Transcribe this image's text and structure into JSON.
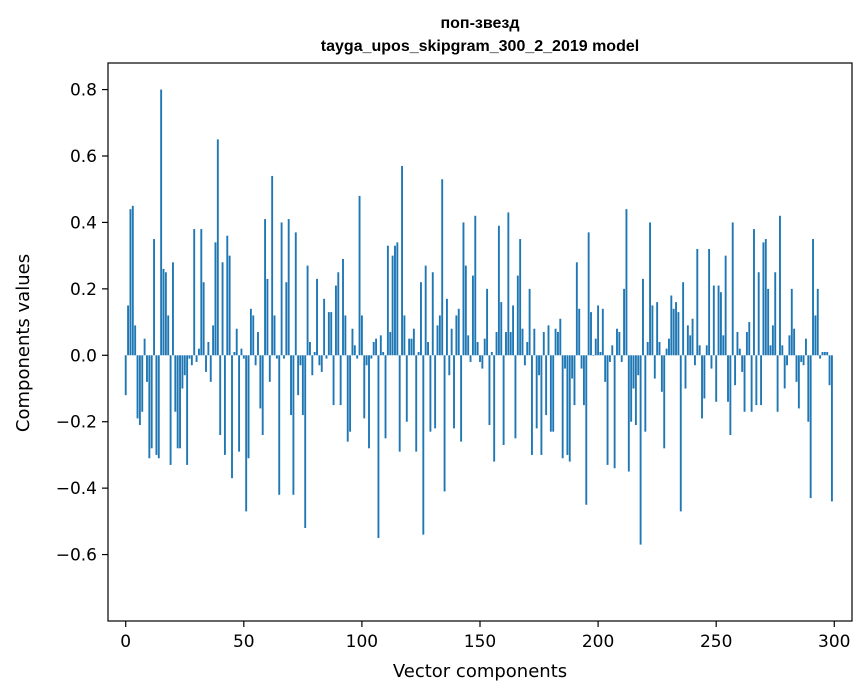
{
  "chart_data": {
    "type": "bar",
    "title_line1": "поп-звезд",
    "title_line2": "tayga_upos_skipgram_300_2_2019 model",
    "xlabel": "Vector components",
    "ylabel": "Components values",
    "xlim": [
      -7.5,
      307.5
    ],
    "ylim": [
      -0.8,
      0.88
    ],
    "x_ticks": [
      0,
      50,
      100,
      150,
      200,
      250,
      300
    ],
    "x_tick_labels": [
      "0",
      "50",
      "100",
      "150",
      "200",
      "250",
      "300"
    ],
    "y_ticks": [
      -0.6,
      -0.4,
      -0.2,
      0.0,
      0.2,
      0.4,
      0.6,
      0.8
    ],
    "y_tick_labels": [
      "−0.6",
      "−0.4",
      "−0.2",
      "0.0",
      "0.2",
      "0.4",
      "0.6",
      "0.8"
    ],
    "bar_color": "#1f77b4",
    "values": [
      -0.12,
      0.15,
      0.44,
      0.45,
      0.09,
      -0.19,
      -0.21,
      -0.17,
      0.05,
      -0.08,
      -0.31,
      -0.28,
      0.35,
      -0.3,
      -0.31,
      0.8,
      0.26,
      0.25,
      0.12,
      -0.33,
      0.28,
      -0.17,
      -0.28,
      -0.28,
      -0.1,
      -0.06,
      -0.33,
      -0.01,
      -0.03,
      0.38,
      -0.02,
      0.02,
      0.38,
      0.22,
      -0.05,
      0.04,
      -0.08,
      0.09,
      0.34,
      0.65,
      -0.24,
      0.28,
      -0.3,
      0.36,
      0.3,
      -0.37,
      0.01,
      0.08,
      -0.29,
      0.02,
      -0.01,
      -0.47,
      -0.31,
      0.14,
      0.12,
      -0.03,
      0.07,
      -0.16,
      -0.24,
      0.41,
      0.23,
      -0.08,
      0.54,
      0.12,
      -0.01,
      -0.42,
      0.4,
      -0.01,
      0.22,
      0.41,
      -0.18,
      -0.42,
      0.37,
      -0.12,
      -0.03,
      -0.18,
      -0.52,
      0.27,
      0.04,
      -0.06,
      0.01,
      0.23,
      -0.03,
      -0.05,
      0.17,
      -0.01,
      0.13,
      0.13,
      -0.15,
      0.21,
      0.25,
      -0.15,
      0.29,
      0.12,
      -0.26,
      -0.23,
      0.08,
      0.03,
      -0.01,
      0.48,
      0.12,
      -0.19,
      -0.03,
      -0.28,
      -0.01,
      0.04,
      0.05,
      -0.55,
      0.06,
      0.01,
      -0.25,
      0.33,
      0.07,
      0.3,
      0.33,
      0.34,
      -0.29,
      0.57,
      0.12,
      -0.2,
      0.05,
      0.05,
      0.08,
      -0.29,
      0.01,
      0.22,
      -0.54,
      0.27,
      0.04,
      -0.23,
      0.25,
      -0.22,
      0.09,
      0.12,
      0.53,
      -0.41,
      0.17,
      -0.06,
      0.08,
      -0.22,
      0.12,
      0.14,
      -0.26,
      0.4,
      0.27,
      0.06,
      -0.02,
      0.24,
      0.42,
      0.04,
      -0.02,
      -0.04,
      0.05,
      0.2,
      -0.21,
      0.01,
      -0.32,
      0.07,
      0.39,
      0.16,
      -0.27,
      0.07,
      0.43,
      0.07,
      0.15,
      -0.25,
      0.24,
      0.35,
      0.08,
      -0.03,
      0.04,
      0.2,
      -0.3,
      0.08,
      -0.22,
      -0.06,
      -0.3,
      0.07,
      -0.18,
      0.09,
      -0.23,
      -0.23,
      0.08,
      0.07,
      0.11,
      -0.31,
      -0.04,
      -0.3,
      -0.32,
      -0.07,
      -0.15,
      0.28,
      0.14,
      -0.04,
      -0.15,
      -0.45,
      0.37,
      0.13,
      0.0,
      0.05,
      0.15,
      0.01,
      0.14,
      -0.08,
      -0.33,
      -0.02,
      0.03,
      -0.34,
      0.08,
      0.07,
      -0.02,
      0.2,
      0.44,
      -0.35,
      -0.2,
      -0.1,
      -0.21,
      -0.06,
      -0.57,
      0.23,
      -0.23,
      0.04,
      0.4,
      0.15,
      -0.07,
      0.16,
      0.04,
      -0.11,
      -0.28,
      0.02,
      0.05,
      0.18,
      0.14,
      0.16,
      0.13,
      -0.47,
      0.22,
      -0.1,
      0.09,
      0.06,
      0.11,
      -0.03,
      0.32,
      0.03,
      -0.19,
      -0.13,
      0.03,
      0.32,
      -0.04,
      0.21,
      -0.14,
      0.21,
      0.19,
      0.06,
      0.3,
      -0.14,
      -0.24,
      0.4,
      -0.09,
      0.07,
      0.02,
      -0.05,
      -0.17,
      0.07,
      0.1,
      -0.17,
      0.38,
      -0.15,
      0.25,
      -0.15,
      0.34,
      0.35,
      0.2,
      0.03,
      0.09,
      0.25,
      -0.17,
      0.42,
      0.03,
      -0.1,
      -0.03,
      0.06,
      0.2,
      0.08,
      -0.08,
      -0.16,
      -0.02,
      -0.03,
      0.05,
      -0.2,
      -0.43,
      0.35,
      0.12,
      0.2,
      -0.01,
      0.01,
      0.01,
      0.01,
      -0.09,
      -0.44
    ]
  }
}
